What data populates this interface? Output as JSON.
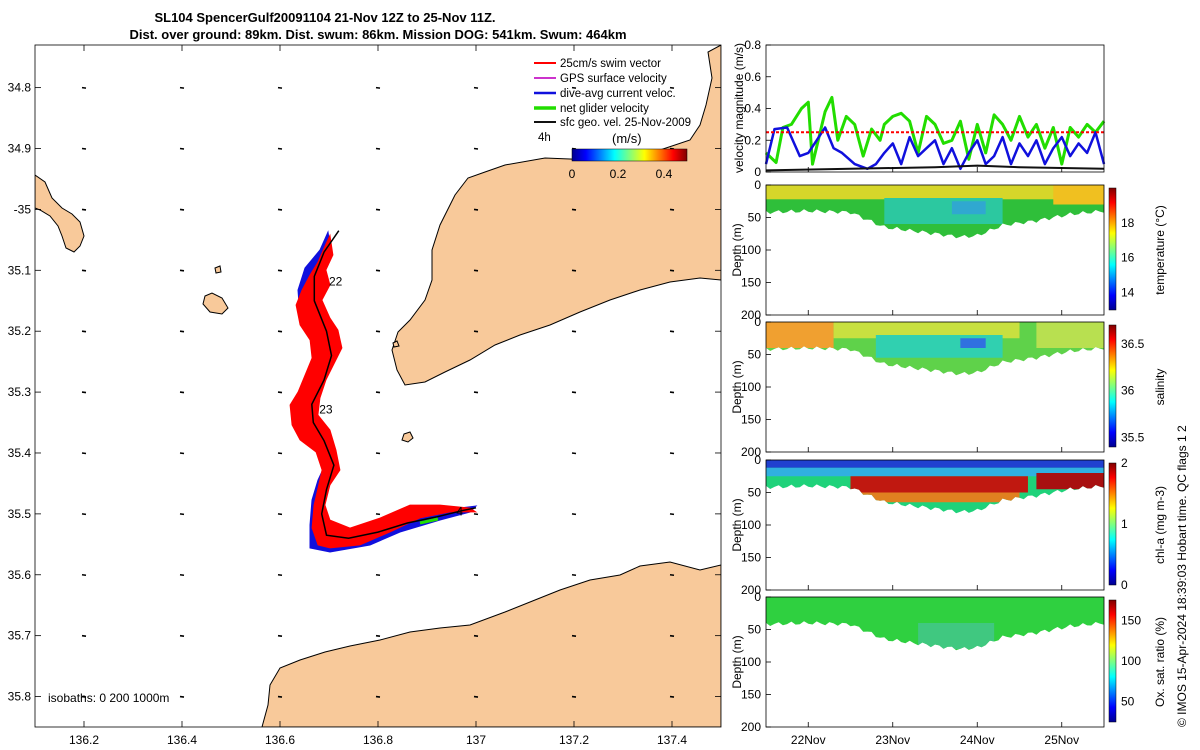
{
  "title": {
    "line1": "SL104 SpencerGulf20091104 21-Nov 12Z to 25-Nov 11Z.",
    "line2": "Dist. over ground: 89km. Dist. swum: 86km. Mission DOG: 541km. Swum: 464km"
  },
  "credit": "© IMOS 15-Apr-2024 18:39:03 Hobart time. QC flags 1  2",
  "colors": {
    "land": "#f8c99a",
    "swim_vector": "#ff0000",
    "gps_surface": "#cc33cc",
    "dive_avg": "#1010dd",
    "net_glider": "#22dd00",
    "sfc_geo": "#111111"
  },
  "chart_data": [
    {
      "id": "map",
      "type": "scatter",
      "title": "glider track map",
      "xlim": [
        136.1,
        137.5
      ],
      "ylim": [
        -35.85,
        -34.73
      ],
      "xticks": [
        136.2,
        136.4,
        136.6,
        136.8,
        137,
        137.2,
        137.4
      ],
      "xtick_labels": [
        "136.2",
        "136.4",
        "136.6",
        "136.8",
        "137",
        "137.2",
        "137.4"
      ],
      "yticks": [
        -34.8,
        -34.9,
        -35.0,
        -35.1,
        -35.2,
        -35.3,
        -35.4,
        -35.5,
        -35.6,
        -35.7,
        -35.8
      ],
      "ytick_labels": [
        "34.8",
        "34.9",
        "-35",
        "35.1",
        "35.2",
        "35.3",
        "35.4",
        "35.5",
        "35.6",
        "35.7",
        "35.8"
      ],
      "legend": [
        {
          "label": "25cm/s swim vector",
          "color": "#ff0000"
        },
        {
          "label": "GPS surface velocity",
          "color": "#cc33cc"
        },
        {
          "label": "dive-avg current veloc.",
          "color": "#1010dd"
        },
        {
          "label": "net glider velocity",
          "color": "#22dd00"
        },
        {
          "label": "sfc geo. vel. 25-Nov-2009",
          "color": "#111111"
        }
      ],
      "legend_position": "top-right",
      "colorbar": {
        "label": "(m/s)",
        "ticks": [
          "0",
          "0.2",
          "0.4"
        ],
        "range": [
          0,
          0.5
        ]
      },
      "scale_label": "4h",
      "isobaths_label": "isobaths: 0   200  1000m",
      "track_day_labels": [
        {
          "text": "22",
          "lon": 136.7,
          "lat": -35.125
        },
        {
          "text": "23",
          "lon": 136.68,
          "lat": -35.335
        },
        {
          "text": "4",
          "lon": 136.96,
          "lat": -35.503
        }
      ],
      "track": [
        [
          136.72,
          -35.035
        ],
        [
          136.69,
          -35.07
        ],
        [
          136.67,
          -35.11
        ],
        [
          136.67,
          -35.15
        ],
        [
          136.695,
          -35.2
        ],
        [
          136.705,
          -35.24
        ],
        [
          136.69,
          -35.28
        ],
        [
          136.665,
          -35.32
        ],
        [
          136.668,
          -35.35
        ],
        [
          136.69,
          -35.38
        ],
        [
          136.71,
          -35.42
        ],
        [
          136.695,
          -35.46
        ],
        [
          136.685,
          -35.5
        ],
        [
          136.695,
          -35.535
        ],
        [
          136.74,
          -35.54
        ],
        [
          136.8,
          -35.53
        ],
        [
          136.86,
          -35.515
        ],
        [
          136.92,
          -35.505
        ],
        [
          136.97,
          -35.495
        ],
        [
          137.0,
          -35.49
        ]
      ]
    },
    {
      "id": "velocity",
      "type": "line",
      "ylabel": "velocity magnitude (m/s)",
      "xlim": [
        21.5,
        25.5
      ],
      "ylim": [
        0,
        0.8
      ],
      "yticks": [
        0,
        0.2,
        0.4,
        0.6,
        0.8
      ],
      "ytick_labels": [
        "0",
        "0.2",
        "0.4",
        "0.6",
        "0.8"
      ],
      "series": [
        {
          "name": "net glider velocity",
          "color": "#22dd00",
          "x": [
            21.5,
            21.62,
            21.7,
            21.8,
            21.92,
            22.0,
            22.05,
            22.2,
            22.28,
            22.35,
            22.45,
            22.55,
            22.65,
            22.75,
            22.85,
            22.9,
            23.0,
            23.1,
            23.2,
            23.3,
            23.4,
            23.5,
            23.6,
            23.7,
            23.8,
            23.9,
            24.0,
            24.1,
            24.2,
            24.3,
            24.4,
            24.5,
            24.6,
            24.7,
            24.8,
            24.9,
            25.0,
            25.1,
            25.2,
            25.3,
            25.4,
            25.5
          ],
          "y": [
            0.12,
            0.06,
            0.28,
            0.3,
            0.4,
            0.44,
            0.05,
            0.38,
            0.47,
            0.2,
            0.35,
            0.3,
            0.1,
            0.27,
            0.2,
            0.3,
            0.35,
            0.37,
            0.32,
            0.12,
            0.35,
            0.3,
            0.18,
            0.2,
            0.32,
            0.08,
            0.3,
            0.12,
            0.36,
            0.3,
            0.2,
            0.35,
            0.22,
            0.3,
            0.15,
            0.28,
            0.05,
            0.28,
            0.22,
            0.3,
            0.25,
            0.32
          ]
        },
        {
          "name": "dive-avg current veloc.",
          "color": "#1010dd",
          "x": [
            21.5,
            21.6,
            21.75,
            21.9,
            22.0,
            22.1,
            22.2,
            22.3,
            22.4,
            22.55,
            22.7,
            22.8,
            22.9,
            23.0,
            23.1,
            23.2,
            23.3,
            23.4,
            23.5,
            23.6,
            23.7,
            23.8,
            23.9,
            24.0,
            24.1,
            24.2,
            24.3,
            24.4,
            24.5,
            24.6,
            24.7,
            24.8,
            24.9,
            25.0,
            25.1,
            25.2,
            25.3,
            25.4,
            25.5
          ],
          "y": [
            0.05,
            0.27,
            0.28,
            0.1,
            0.12,
            0.2,
            0.28,
            0.15,
            0.12,
            0.05,
            0.02,
            0.05,
            0.12,
            0.18,
            0.05,
            0.22,
            0.1,
            0.15,
            0.2,
            0.05,
            0.15,
            0.02,
            0.12,
            0.2,
            0.05,
            0.1,
            0.22,
            0.05,
            0.18,
            0.1,
            0.2,
            0.05,
            0.15,
            0.22,
            0.1,
            0.18,
            0.12,
            0.25,
            0.05
          ]
        },
        {
          "name": "25cm/s swim vector",
          "color": "#ff0000",
          "x": [
            21.5,
            25.5
          ],
          "y": [
            0.25,
            0.25
          ]
        },
        {
          "name": "sfc geo. vel. 25-Nov-2009",
          "color": "#111111",
          "x": [
            21.5,
            22.5,
            23.5,
            24.0,
            24.5,
            25.5
          ],
          "y": [
            0.01,
            0.02,
            0.03,
            0.04,
            0.03,
            0.02
          ]
        }
      ]
    },
    {
      "id": "temperature",
      "type": "heatmap",
      "ylabel": "Depth (m)",
      "ylim": [
        200,
        0
      ],
      "yticks": [
        0,
        50,
        100,
        150,
        200
      ],
      "ytick_labels": [
        "0",
        "50",
        "100",
        "150",
        "200"
      ],
      "colorbar": {
        "label": "temperature (°C)",
        "range": [
          13,
          20
        ],
        "ticks": [
          14,
          16,
          18
        ],
        "tick_labels": [
          "14",
          "16",
          "18"
        ]
      },
      "bottom_depth": {
        "x": [
          21.5,
          22.0,
          22.5,
          22.9,
          23.2,
          23.5,
          23.8,
          24.0,
          24.3,
          24.7,
          25.1,
          25.5
        ],
        "y": [
          42,
          40,
          42,
          65,
          70,
          75,
          80,
          78,
          62,
          55,
          45,
          40
        ]
      }
    },
    {
      "id": "salinity",
      "type": "heatmap",
      "ylabel": "Depth (m)",
      "ylim": [
        200,
        0
      ],
      "yticks": [
        0,
        50,
        100,
        150,
        200
      ],
      "ytick_labels": [
        "0",
        "50",
        "100",
        "150",
        "200"
      ],
      "colorbar": {
        "label": "salinity",
        "range": [
          35.4,
          36.7
        ],
        "ticks": [
          35.5,
          36,
          36.5
        ],
        "tick_labels": [
          "35.5",
          "36",
          "36.5"
        ]
      },
      "bottom_depth": {
        "x": [
          21.5,
          22.0,
          22.5,
          22.9,
          23.2,
          23.5,
          23.8,
          24.0,
          24.3,
          24.7,
          25.1,
          25.5
        ],
        "y": [
          42,
          40,
          42,
          65,
          70,
          75,
          80,
          78,
          62,
          55,
          45,
          40
        ]
      }
    },
    {
      "id": "chl",
      "type": "heatmap",
      "ylabel": "Depth (m)",
      "ylim": [
        200,
        0
      ],
      "yticks": [
        0,
        50,
        100,
        150,
        200
      ],
      "ytick_labels": [
        "0",
        "50",
        "100",
        "150",
        "200"
      ],
      "colorbar": {
        "label": "chl-a (mg m-3)",
        "range": [
          0,
          2
        ],
        "ticks": [
          0,
          1,
          2
        ],
        "tick_labels": [
          "0",
          "1",
          "2"
        ]
      },
      "bottom_depth": {
        "x": [
          21.5,
          22.0,
          22.5,
          22.9,
          23.2,
          23.5,
          23.8,
          24.0,
          24.3,
          24.7,
          25.1,
          25.5
        ],
        "y": [
          42,
          40,
          42,
          65,
          70,
          75,
          80,
          78,
          62,
          55,
          45,
          40
        ]
      }
    },
    {
      "id": "oxygen",
      "type": "heatmap",
      "ylabel": "Depth (m)",
      "ylim": [
        200,
        0
      ],
      "yticks": [
        0,
        50,
        100,
        150,
        200
      ],
      "ytick_labels": [
        "0",
        "50",
        "100",
        "150",
        "200"
      ],
      "colorbar": {
        "label": "Ox. sat. ratio (%)",
        "range": [
          25,
          175
        ],
        "ticks": [
          50,
          100,
          150
        ],
        "tick_labels": [
          "50",
          "100",
          "150"
        ]
      },
      "bottom_depth": {
        "x": [
          21.5,
          22.0,
          22.5,
          22.9,
          23.2,
          23.5,
          23.8,
          24.0,
          24.3,
          24.7,
          25.1,
          25.5
        ],
        "y": [
          42,
          40,
          42,
          65,
          70,
          75,
          80,
          78,
          62,
          55,
          45,
          40
        ]
      }
    },
    {
      "id": "time_axis",
      "type": "line",
      "xlim": [
        21.5,
        25.5
      ],
      "xticks": [
        22,
        23,
        24,
        25
      ],
      "xtick_labels": [
        "22Nov",
        "23Nov",
        "24Nov",
        "25Nov"
      ]
    }
  ]
}
